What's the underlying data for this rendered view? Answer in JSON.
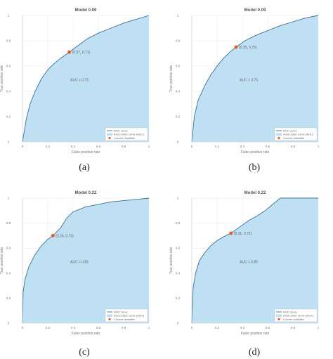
{
  "colors": {
    "fill": "#bfdff3",
    "curve": "#3a6f96",
    "marker": "#e05a1e",
    "grid": "#e8e8e8",
    "axis": "#cfcfcf"
  },
  "chart_data": [
    {
      "type": "area",
      "caption": "(a)",
      "title": "Model 0.09",
      "xlabel": "False positive rate",
      "ylabel": "True positive rate",
      "xlim": [
        0,
        1
      ],
      "ylim": [
        0,
        1
      ],
      "xticks": [
        "0",
        "0.2",
        "0.4",
        "0.6",
        "0.8",
        "1"
      ],
      "yticks": [
        "0",
        "0.2",
        "0.4",
        "0.6",
        "0.8",
        "1"
      ],
      "grid": true,
      "legend_position": "bottom-right",
      "auc_label": "AUC = 0.75",
      "annotation": "(0.37, 0.71)",
      "point": [
        0.37,
        0.71
      ],
      "legend": [
        "ROC curve",
        "Area under curve (AUC)",
        "Current classifier"
      ],
      "x": [
        0,
        0.03,
        0.06,
        0.1,
        0.15,
        0.2,
        0.25,
        0.3,
        0.37,
        0.45,
        0.52,
        0.6,
        0.7,
        0.8,
        0.9,
        1
      ],
      "y": [
        0,
        0.18,
        0.3,
        0.4,
        0.5,
        0.57,
        0.62,
        0.66,
        0.71,
        0.77,
        0.82,
        0.86,
        0.9,
        0.94,
        0.97,
        1
      ]
    },
    {
      "type": "area",
      "caption": "(b)",
      "title": "Model 0.09",
      "xlabel": "False positive rate",
      "ylabel": "True positive rate",
      "xlim": [
        0,
        1
      ],
      "ylim": [
        0,
        1
      ],
      "xticks": [
        "0",
        "0.2",
        "0.4",
        "0.6",
        "0.8",
        "1"
      ],
      "yticks": [
        "0",
        "0.2",
        "0.4",
        "0.6",
        "0.8",
        "1"
      ],
      "grid": true,
      "legend_position": "bottom-right",
      "auc_label": "AUC = 0.75",
      "annotation": "(0.35, 0.75)",
      "point": [
        0.35,
        0.75
      ],
      "legend": [
        "ROC curve",
        "Area under curve (AUC)",
        "Current classifier"
      ],
      "x": [
        0,
        0.02,
        0.05,
        0.1,
        0.15,
        0.2,
        0.25,
        0.3,
        0.35,
        0.42,
        0.5,
        0.6,
        0.7,
        0.8,
        0.9,
        1
      ],
      "y": [
        0,
        0.2,
        0.33,
        0.44,
        0.53,
        0.6,
        0.66,
        0.71,
        0.75,
        0.8,
        0.84,
        0.88,
        0.92,
        0.95,
        0.98,
        1
      ]
    },
    {
      "type": "area",
      "caption": "(c)",
      "title": "Model 0.22",
      "xlabel": "False positive rate",
      "ylabel": "True positive rate",
      "xlim": [
        0,
        1
      ],
      "ylim": [
        0,
        1
      ],
      "xticks": [
        "0",
        "0.2",
        "0.4",
        "0.6",
        "0.8",
        "1"
      ],
      "yticks": [
        "0",
        "0.2",
        "0.4",
        "0.6",
        "0.8",
        "1"
      ],
      "grid": true,
      "legend_position": "bottom-right",
      "auc_label": "AUC = 0.85",
      "annotation": "(0.24, 0.70)",
      "point": [
        0.24,
        0.7
      ],
      "legend": [
        "ROC curve",
        "Area under curve (AUC)",
        "Current classifier"
      ],
      "x": [
        0,
        0.005,
        0.02,
        0.05,
        0.1,
        0.15,
        0.2,
        0.24,
        0.3,
        0.35,
        0.4,
        0.5,
        0.6,
        0.7,
        0.8,
        0.9,
        1
      ],
      "y": [
        0,
        0.25,
        0.35,
        0.45,
        0.55,
        0.62,
        0.67,
        0.7,
        0.76,
        0.84,
        0.89,
        0.93,
        0.95,
        0.97,
        0.98,
        0.99,
        1
      ]
    },
    {
      "type": "area",
      "caption": "(d)",
      "title": "Model 0.22",
      "xlabel": "False positive rate",
      "ylabel": "True positive rate",
      "xlim": [
        0,
        1
      ],
      "ylim": [
        0,
        1
      ],
      "xticks": [
        "0",
        "0.2",
        "0.4",
        "0.6",
        "0.8",
        "1"
      ],
      "yticks": [
        "0",
        "0.2",
        "0.4",
        "0.6",
        "0.8",
        "1"
      ],
      "grid": true,
      "legend_position": "bottom-right",
      "auc_label": "AUC = 0.85",
      "annotation": "(0.31, 0.72)",
      "point": [
        0.31,
        0.72
      ],
      "legend": [
        "ROC curve",
        "Area under curve (AUC)",
        "Current classifier"
      ],
      "x": [
        0,
        0.01,
        0.03,
        0.06,
        0.1,
        0.15,
        0.2,
        0.25,
        0.31,
        0.38,
        0.45,
        0.52,
        0.58,
        0.64,
        0.7,
        0.8,
        0.9,
        1
      ],
      "y": [
        0,
        0.28,
        0.4,
        0.5,
        0.56,
        0.62,
        0.66,
        0.69,
        0.72,
        0.77,
        0.82,
        0.86,
        0.9,
        0.95,
        1,
        1,
        1,
        1
      ]
    }
  ]
}
